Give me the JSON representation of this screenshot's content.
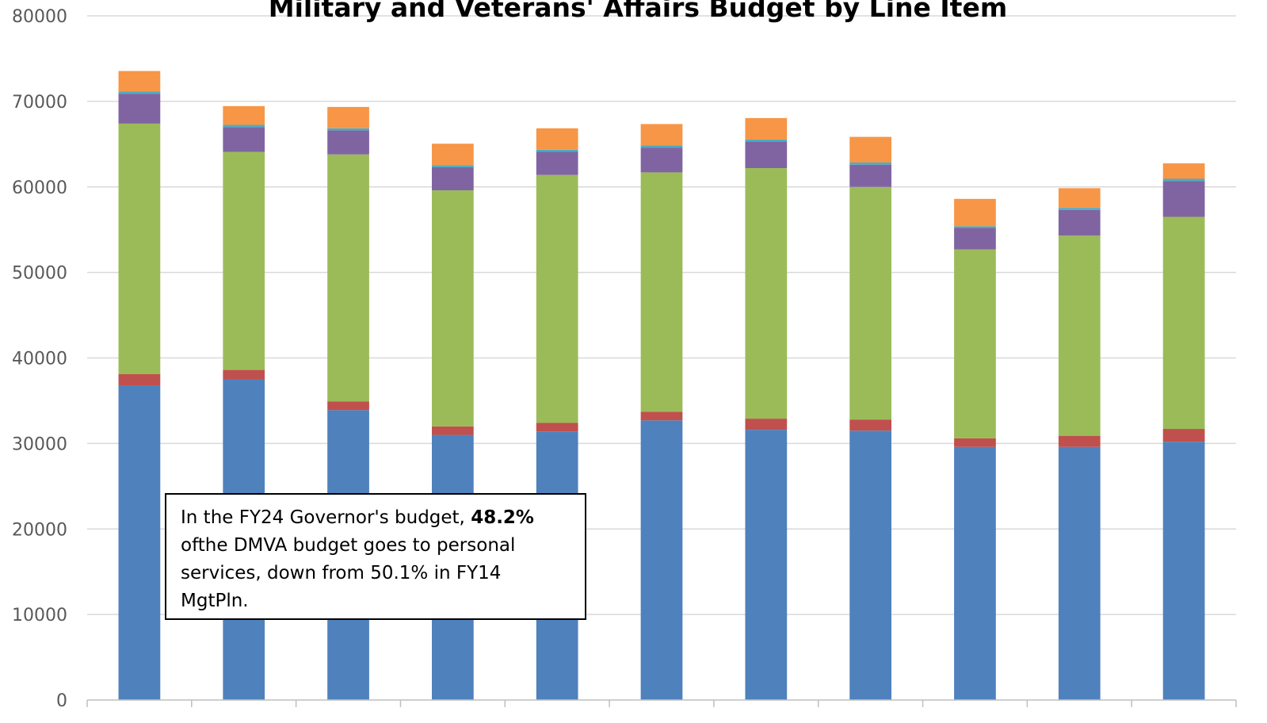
{
  "chart_data": {
    "type": "stacked-bar",
    "title": "Military and Veterans' Affairs Budget by Line Item",
    "xlabel": "",
    "ylabel": "",
    "ylim": [
      0,
      80000
    ],
    "yticks": [
      0,
      10000,
      20000,
      30000,
      40000,
      50000,
      60000,
      70000,
      80000
    ],
    "grid": true,
    "legend": "none",
    "categories": [
      "",
      "",
      "",
      "",
      "",
      "",
      "",
      "",
      "",
      "",
      ""
    ],
    "series": [
      {
        "color": "#4F81BD",
        "values": [
          36800,
          37500,
          33900,
          31000,
          31400,
          32700,
          31600,
          31500,
          29600,
          29600,
          30200
        ]
      },
      {
        "color": "#C0504D",
        "values": [
          1300,
          1100,
          1000,
          1000,
          1000,
          1000,
          1300,
          1300,
          1000,
          1300,
          1500
        ]
      },
      {
        "color": "#9BBB59",
        "values": [
          29300,
          25500,
          28900,
          27600,
          29000,
          28000,
          29300,
          27200,
          22100,
          23400,
          24800
        ]
      },
      {
        "color": "#8064A2",
        "values": [
          3500,
          2900,
          2800,
          2700,
          2700,
          2900,
          3100,
          2600,
          2500,
          3000,
          4200
        ]
      },
      {
        "color": "#4BACC6",
        "values": [
          250,
          250,
          250,
          250,
          250,
          250,
          250,
          250,
          200,
          250,
          250
        ]
      },
      {
        "color": "#F79646",
        "values": [
          2400,
          2200,
          2500,
          2500,
          2500,
          2500,
          2500,
          3000,
          3200,
          2300,
          1800
        ]
      }
    ]
  },
  "annotation": {
    "text_before": "In the FY24 Governor's budget, ",
    "bold": "48.2%",
    "text_after": " ofthe DMVA budget goes to personal services, down from 50.1% in FY14 MgtPln."
  },
  "colors": {
    "gridline": "#D9D9D9",
    "axis": "#BFBFBF",
    "tick_text": "#595959"
  }
}
